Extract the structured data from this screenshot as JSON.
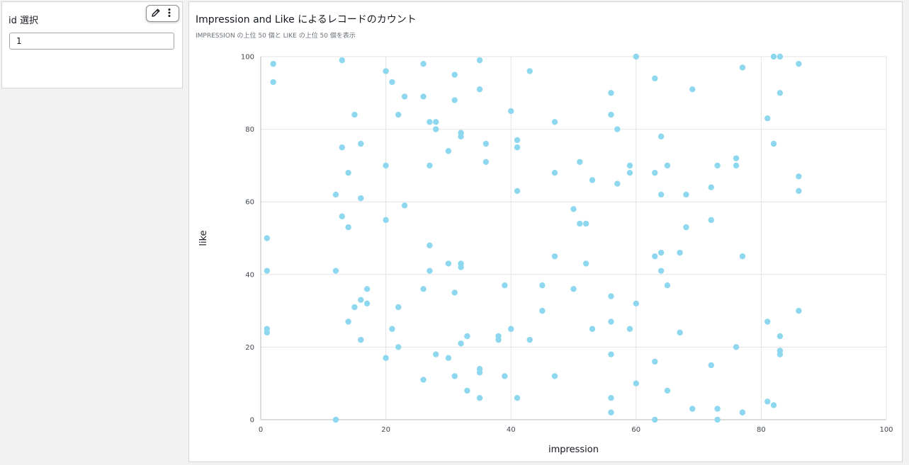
{
  "filter": {
    "title": "id 選択",
    "value": "1",
    "toolbar": {
      "edit_icon": "pencil-icon",
      "menu_icon": "more-vertical-icon"
    }
  },
  "chart": {
    "title": "Impression and Like によるレコードのカウント",
    "subtitle": "IMPRESSION の上位 50 個と LIKE の上位 50 個を表示"
  },
  "colors": {
    "point": "#8dd7ef",
    "grid": "#e3e3e3"
  },
  "chart_data": {
    "type": "scatter",
    "xlabel": "impression",
    "ylabel": "like",
    "xlim": [
      0,
      100
    ],
    "ylim": [
      0,
      100
    ],
    "x_ticks": [
      0,
      20,
      40,
      60,
      80,
      100
    ],
    "y_ticks": [
      0,
      20,
      40,
      60,
      80,
      100
    ],
    "grid": true,
    "points": [
      [
        2,
        98
      ],
      [
        2,
        93
      ],
      [
        1,
        50
      ],
      [
        1,
        41
      ],
      [
        1,
        25
      ],
      [
        1,
        24
      ],
      [
        13,
        99
      ],
      [
        12,
        62
      ],
      [
        12,
        41
      ],
      [
        12,
        0
      ],
      [
        13,
        75
      ],
      [
        13,
        56
      ],
      [
        14,
        68
      ],
      [
        14,
        53
      ],
      [
        14,
        27
      ],
      [
        15,
        84
      ],
      [
        15,
        31
      ],
      [
        16,
        76
      ],
      [
        16,
        61
      ],
      [
        16,
        33
      ],
      [
        16,
        22
      ],
      [
        17,
        36
      ],
      [
        17,
        32
      ],
      [
        20,
        96
      ],
      [
        20,
        70
      ],
      [
        20,
        55
      ],
      [
        20,
        17
      ],
      [
        21,
        93
      ],
      [
        21,
        25
      ],
      [
        22,
        84
      ],
      [
        22,
        31
      ],
      [
        22,
        20
      ],
      [
        23,
        89
      ],
      [
        23,
        59
      ],
      [
        26,
        98
      ],
      [
        26,
        89
      ],
      [
        26,
        36
      ],
      [
        26,
        11
      ],
      [
        27,
        82
      ],
      [
        27,
        70
      ],
      [
        27,
        48
      ],
      [
        27,
        41
      ],
      [
        28,
        82
      ],
      [
        28,
        80
      ],
      [
        28,
        18
      ],
      [
        30,
        74
      ],
      [
        30,
        43
      ],
      [
        30,
        17
      ],
      [
        31,
        95
      ],
      [
        31,
        88
      ],
      [
        31,
        35
      ],
      [
        31,
        12
      ],
      [
        32,
        79
      ],
      [
        32,
        78
      ],
      [
        32,
        43
      ],
      [
        32,
        42
      ],
      [
        32,
        21
      ],
      [
        33,
        23
      ],
      [
        33,
        8
      ],
      [
        35,
        99
      ],
      [
        35,
        91
      ],
      [
        35,
        14
      ],
      [
        35,
        13
      ],
      [
        35,
        6
      ],
      [
        36,
        76
      ],
      [
        36,
        71
      ],
      [
        38,
        23
      ],
      [
        38,
        22
      ],
      [
        39,
        37
      ],
      [
        39,
        12
      ],
      [
        40,
        85
      ],
      [
        40,
        25
      ],
      [
        41,
        77
      ],
      [
        41,
        75
      ],
      [
        41,
        63
      ],
      [
        41,
        6
      ],
      [
        43,
        96
      ],
      [
        43,
        22
      ],
      [
        45,
        37
      ],
      [
        45,
        30
      ],
      [
        47,
        82
      ],
      [
        47,
        68
      ],
      [
        47,
        45
      ],
      [
        47,
        12
      ],
      [
        50,
        58
      ],
      [
        50,
        36
      ],
      [
        51,
        71
      ],
      [
        51,
        54
      ],
      [
        52,
        54
      ],
      [
        52,
        43
      ],
      [
        53,
        66
      ],
      [
        53,
        25
      ],
      [
        56,
        90
      ],
      [
        56,
        84
      ],
      [
        56,
        34
      ],
      [
        56,
        27
      ],
      [
        56,
        18
      ],
      [
        56,
        6
      ],
      [
        56,
        2
      ],
      [
        57,
        80
      ],
      [
        57,
        65
      ],
      [
        59,
        70
      ],
      [
        59,
        68
      ],
      [
        59,
        25
      ],
      [
        60,
        100
      ],
      [
        60,
        32
      ],
      [
        60,
        10
      ],
      [
        63,
        94
      ],
      [
        63,
        68
      ],
      [
        63,
        45
      ],
      [
        63,
        16
      ],
      [
        63,
        0
      ],
      [
        64,
        78
      ],
      [
        64,
        62
      ],
      [
        64,
        46
      ],
      [
        64,
        41
      ],
      [
        65,
        70
      ],
      [
        65,
        37
      ],
      [
        65,
        8
      ],
      [
        67,
        46
      ],
      [
        67,
        24
      ],
      [
        68,
        62
      ],
      [
        68,
        53
      ],
      [
        69,
        91
      ],
      [
        69,
        3
      ],
      [
        72,
        64
      ],
      [
        72,
        55
      ],
      [
        72,
        15
      ],
      [
        73,
        70
      ],
      [
        73,
        3
      ],
      [
        73,
        0
      ],
      [
        76,
        72
      ],
      [
        76,
        70
      ],
      [
        76,
        20
      ],
      [
        77,
        97
      ],
      [
        77,
        45
      ],
      [
        77,
        2
      ],
      [
        81,
        83
      ],
      [
        81,
        27
      ],
      [
        81,
        5
      ],
      [
        82,
        100
      ],
      [
        82,
        76
      ],
      [
        82,
        4
      ],
      [
        83,
        100
      ],
      [
        83,
        90
      ],
      [
        83,
        23
      ],
      [
        83,
        19
      ],
      [
        83,
        18
      ],
      [
        86,
        98
      ],
      [
        86,
        67
      ],
      [
        86,
        63
      ],
      [
        86,
        30
      ]
    ]
  }
}
